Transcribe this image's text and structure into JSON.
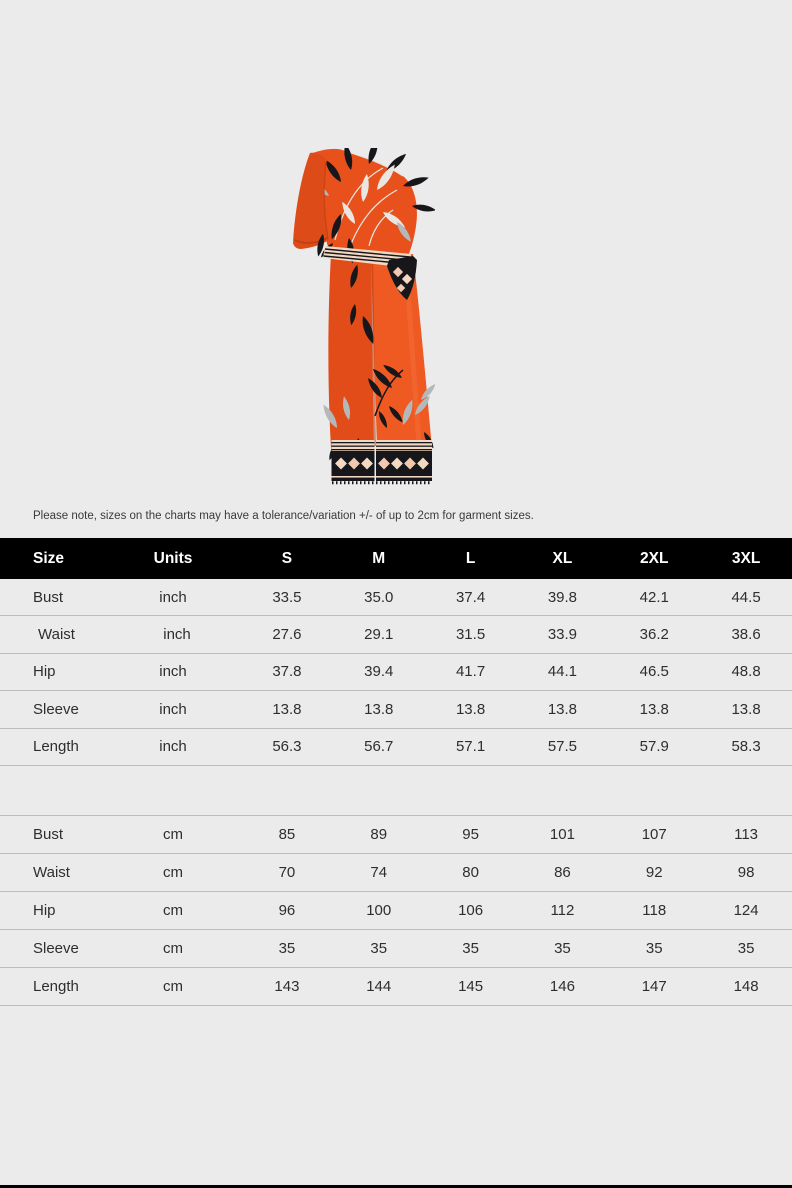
{
  "note": "Please note, sizes on the charts may have a tolerance/variation +/- of up to 2cm for garment sizes.",
  "product_photo": {
    "alt": "Orange one-shoulder flutter-sleeve crop top and wide-leg pants with black, white and gray leaf print and diamond-pattern trim"
  },
  "size_chart": {
    "columns": [
      "Size",
      "Units",
      "S",
      "M",
      "L",
      "XL",
      "2XL",
      "3XL"
    ],
    "inch_rows": [
      {
        "label": "Bust",
        "unit": "inch",
        "values": [
          "33.5",
          "35.0",
          "37.4",
          "39.8",
          "42.1",
          "44.5"
        ]
      },
      {
        "label": "Waist",
        "unit": "inch",
        "values": [
          "27.6",
          "29.1",
          "31.5",
          "33.9",
          "36.2",
          "38.6"
        ],
        "indented": true
      },
      {
        "label": "Hip",
        "unit": "inch",
        "values": [
          "37.8",
          "39.4",
          "41.7",
          "44.1",
          "46.5",
          "48.8"
        ]
      },
      {
        "label": "Sleeve",
        "unit": "inch",
        "values": [
          "13.8",
          "13.8",
          "13.8",
          "13.8",
          "13.8",
          "13.8"
        ]
      },
      {
        "label": "Length",
        "unit": "inch",
        "values": [
          "56.3",
          "56.7",
          "57.1",
          "57.5",
          "57.9",
          "58.3"
        ]
      }
    ],
    "cm_rows": [
      {
        "label": "Bust",
        "unit": "cm",
        "values": [
          "85",
          "89",
          "95",
          "101",
          "107",
          "113"
        ]
      },
      {
        "label": "Waist",
        "unit": "cm",
        "values": [
          "70",
          "74",
          "80",
          "86",
          "92",
          "98"
        ]
      },
      {
        "label": "Hip",
        "unit": "cm",
        "values": [
          "96",
          "100",
          "106",
          "112",
          "118",
          "124"
        ]
      },
      {
        "label": "Sleeve",
        "unit": "cm",
        "values": [
          "35",
          "35",
          "35",
          "35",
          "35",
          "35"
        ]
      },
      {
        "label": "Length",
        "unit": "cm",
        "values": [
          "143",
          "144",
          "145",
          "146",
          "147",
          "148"
        ]
      }
    ]
  },
  "colors": {
    "page_background": "#ebebeb",
    "table_header_background": "#000000",
    "table_header_text": "#ffffff",
    "table_text": "#2e2e2e",
    "note_text": "#3a3a3a",
    "row_divider": "#bdbdbd",
    "bottom_bar": "#000000",
    "product_orange": "#e8511c",
    "product_orange_dark": "#c6410f",
    "product_black": "#17171b",
    "product_white": "#e9e6e1",
    "product_gray": "#b5b8ba",
    "product_cream": "#f3d9c3",
    "product_pink": "#f0c9b0"
  }
}
